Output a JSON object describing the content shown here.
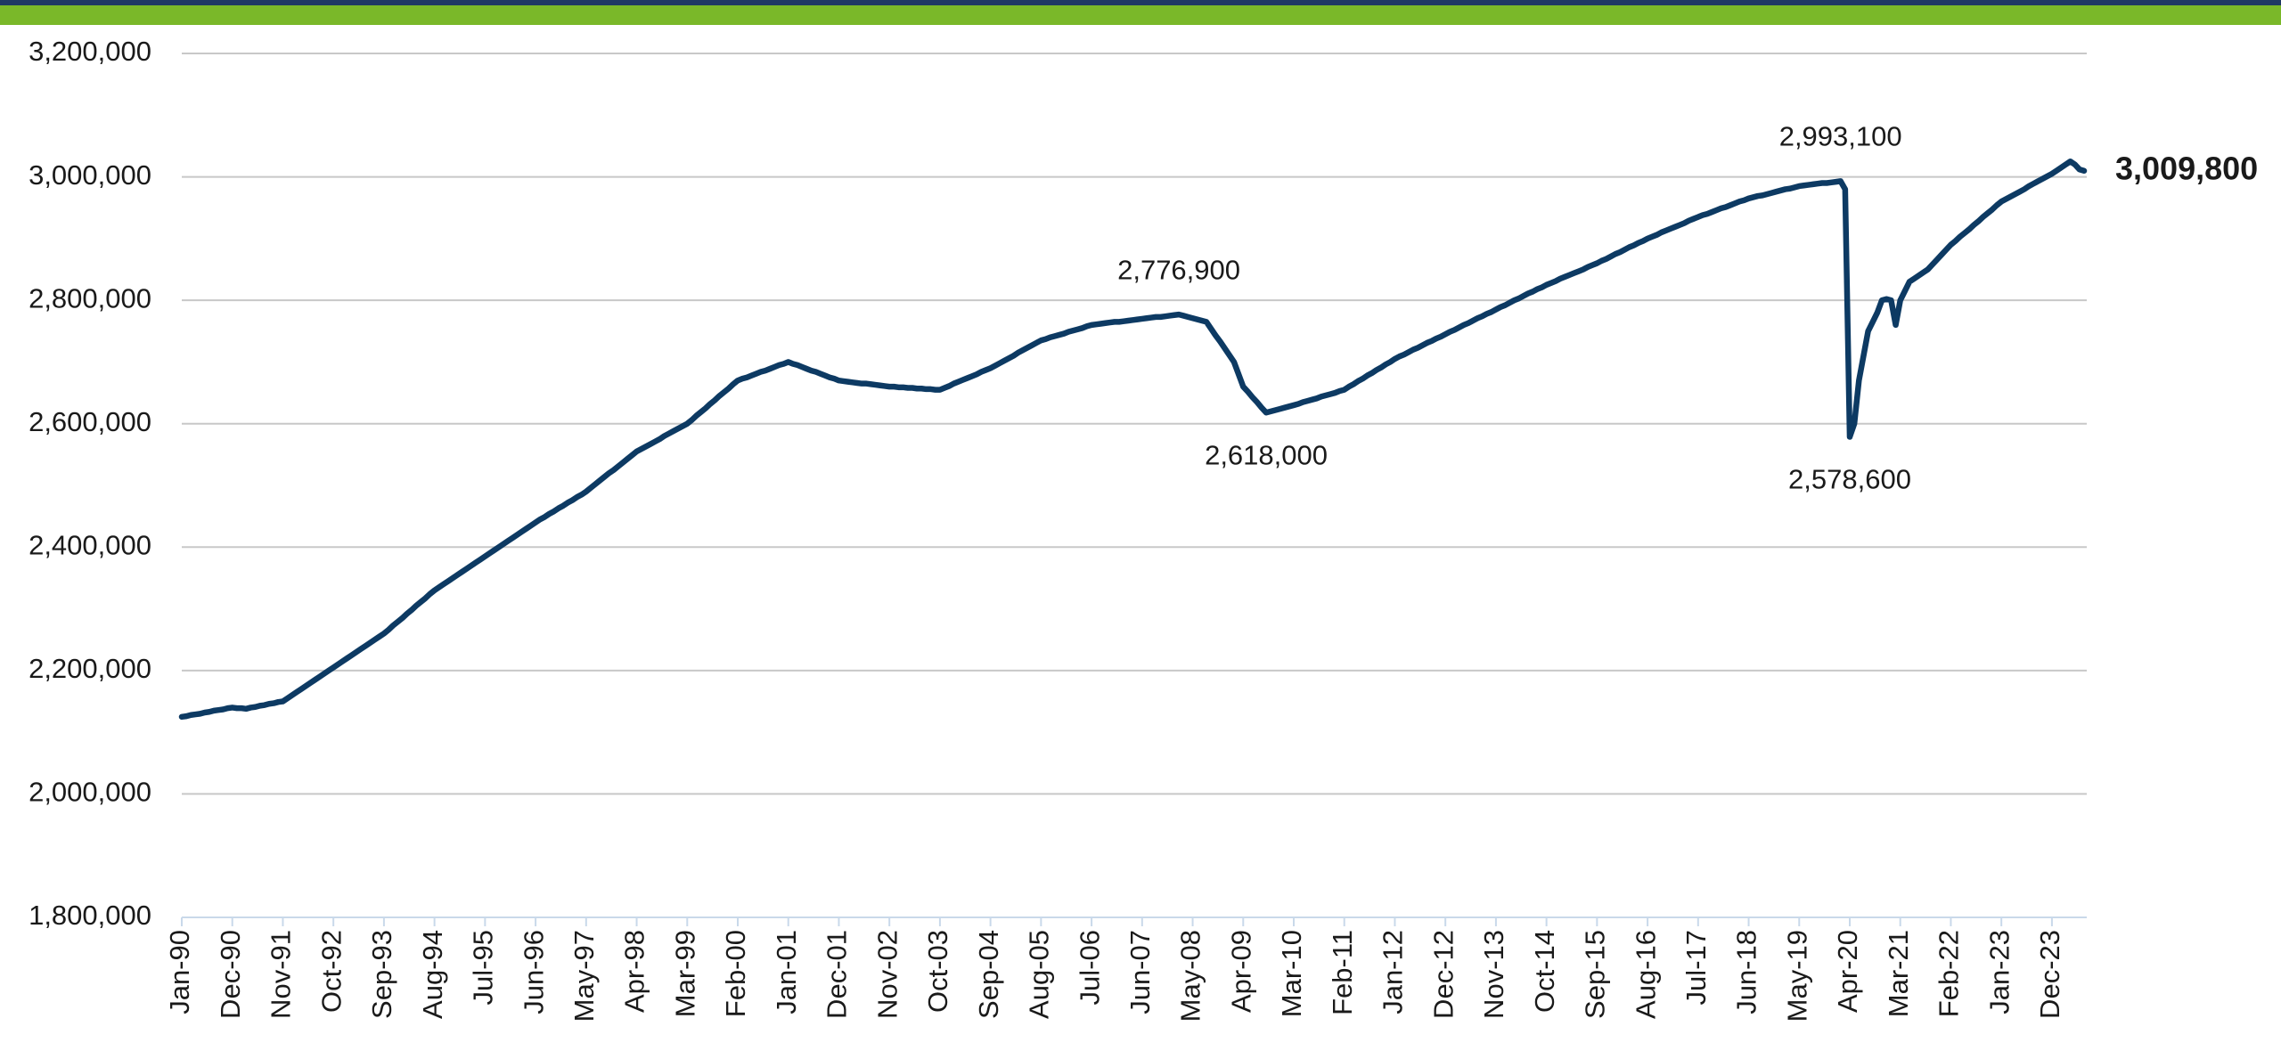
{
  "chart_data": {
    "type": "line",
    "color": "#0d3a63",
    "grid": true,
    "ylim": [
      1800000,
      3200000
    ],
    "yticks": [
      {
        "value": 1800000,
        "label": "1,800,000"
      },
      {
        "value": 2000000,
        "label": "2,000,000"
      },
      {
        "value": 2200000,
        "label": "2,200,000"
      },
      {
        "value": 2400000,
        "label": "2,400,000"
      },
      {
        "value": 2600000,
        "label": "2,600,000"
      },
      {
        "value": 2800000,
        "label": "2,800,000"
      },
      {
        "value": 3000000,
        "label": "3,000,000"
      },
      {
        "value": 3200000,
        "label": "3,200,000"
      }
    ],
    "categories": [
      "Jan-90",
      null,
      null,
      null,
      null,
      null,
      null,
      null,
      null,
      null,
      null,
      "Dec-90",
      null,
      null,
      null,
      null,
      null,
      null,
      null,
      null,
      null,
      null,
      "Nov-91",
      null,
      null,
      null,
      null,
      null,
      null,
      null,
      null,
      null,
      null,
      "Oct-92",
      null,
      null,
      null,
      null,
      null,
      null,
      null,
      null,
      null,
      null,
      "Sep-93",
      null,
      null,
      null,
      null,
      null,
      null,
      null,
      null,
      null,
      null,
      "Aug-94",
      null,
      null,
      null,
      null,
      null,
      null,
      null,
      null,
      null,
      null,
      "Jul-95",
      null,
      null,
      null,
      null,
      null,
      null,
      null,
      null,
      null,
      null,
      "Jun-96",
      null,
      null,
      null,
      null,
      null,
      null,
      null,
      null,
      null,
      null,
      "May-97",
      null,
      null,
      null,
      null,
      null,
      null,
      null,
      null,
      null,
      null,
      "Apr-98",
      null,
      null,
      null,
      null,
      null,
      null,
      null,
      null,
      null,
      null,
      "Mar-99",
      null,
      null,
      null,
      null,
      null,
      null,
      null,
      null,
      null,
      null,
      "Feb-00",
      null,
      null,
      null,
      null,
      null,
      null,
      null,
      null,
      null,
      null,
      "Jan-01",
      null,
      null,
      null,
      null,
      null,
      null,
      null,
      null,
      null,
      null,
      "Dec-01",
      null,
      null,
      null,
      null,
      null,
      null,
      null,
      null,
      null,
      null,
      "Nov-02",
      null,
      null,
      null,
      null,
      null,
      null,
      null,
      null,
      null,
      null,
      "Oct-03",
      null,
      null,
      null,
      null,
      null,
      null,
      null,
      null,
      null,
      null,
      "Sep-04",
      null,
      null,
      null,
      null,
      null,
      null,
      null,
      null,
      null,
      null,
      "Aug-05",
      null,
      null,
      null,
      null,
      null,
      null,
      null,
      null,
      null,
      null,
      "Jul-06",
      null,
      null,
      null,
      null,
      null,
      null,
      null,
      null,
      null,
      null,
      "Jun-07",
      null,
      null,
      null,
      null,
      null,
      null,
      null,
      null,
      null,
      null,
      "May-08",
      null,
      null,
      null,
      null,
      null,
      null,
      null,
      null,
      null,
      null,
      "Apr-09",
      null,
      null,
      null,
      null,
      null,
      null,
      null,
      null,
      null,
      null,
      "Mar-10",
      null,
      null,
      null,
      null,
      null,
      null,
      null,
      null,
      null,
      null,
      "Feb-11",
      null,
      null,
      null,
      null,
      null,
      null,
      null,
      null,
      null,
      null,
      "Jan-12",
      null,
      null,
      null,
      null,
      null,
      null,
      null,
      null,
      null,
      null,
      "Dec-12",
      null,
      null,
      null,
      null,
      null,
      null,
      null,
      null,
      null,
      null,
      "Nov-13",
      null,
      null,
      null,
      null,
      null,
      null,
      null,
      null,
      null,
      null,
      "Oct-14",
      null,
      null,
      null,
      null,
      null,
      null,
      null,
      null,
      null,
      null,
      "Sep-15",
      null,
      null,
      null,
      null,
      null,
      null,
      null,
      null,
      null,
      null,
      "Aug-16",
      null,
      null,
      null,
      null,
      null,
      null,
      null,
      null,
      null,
      null,
      "Jul-17",
      null,
      null,
      null,
      null,
      null,
      null,
      null,
      null,
      null,
      null,
      "Jun-18",
      null,
      null,
      null,
      null,
      null,
      null,
      null,
      null,
      null,
      null,
      "May-19",
      null,
      null,
      null,
      null,
      null,
      null,
      null,
      null,
      null,
      null,
      "Apr-20",
      null,
      null,
      null,
      null,
      null,
      null,
      null,
      null,
      null,
      null,
      "Mar-21",
      null,
      null,
      null,
      null,
      null,
      null,
      null,
      null,
      null,
      null,
      "Feb-22",
      null,
      null,
      null,
      null,
      null,
      null,
      null,
      null,
      null,
      null,
      "Jan-23",
      null,
      null,
      null,
      null,
      null,
      null,
      null,
      null,
      null,
      null,
      "Dec-23",
      null,
      null,
      null,
      null,
      null,
      null,
      null
    ],
    "values": [
      2125000,
      2126000,
      2128000,
      2129000,
      2130000,
      2132000,
      2133000,
      2135000,
      2136000,
      2137000,
      2139000,
      2140000,
      2139000,
      2139000,
      2138000,
      2140000,
      2141000,
      2143000,
      2144000,
      2146000,
      2147000,
      2149000,
      2150000,
      2155000,
      2160000,
      2165000,
      2170000,
      2175000,
      2180000,
      2185000,
      2190000,
      2195000,
      2200000,
      2205000,
      2210000,
      2215000,
      2220000,
      2225000,
      2230000,
      2235000,
      2240000,
      2245000,
      2250000,
      2255000,
      2260000,
      2266000,
      2273000,
      2279000,
      2285000,
      2292000,
      2298000,
      2305000,
      2311000,
      2317000,
      2324000,
      2330000,
      2335000,
      2340000,
      2345000,
      2350000,
      2355000,
      2360000,
      2365000,
      2370000,
      2375000,
      2380000,
      2385000,
      2390000,
      2395000,
      2400000,
      2405000,
      2410000,
      2415000,
      2420000,
      2425000,
      2430000,
      2435000,
      2440000,
      2445000,
      2449000,
      2454000,
      2458000,
      2463000,
      2467000,
      2472000,
      2476000,
      2481000,
      2485000,
      2490000,
      2496000,
      2502000,
      2508000,
      2514000,
      2520000,
      2525000,
      2531000,
      2537000,
      2543000,
      2549000,
      2555000,
      2559000,
      2563000,
      2567000,
      2571000,
      2575000,
      2580000,
      2584000,
      2588000,
      2592000,
      2596000,
      2600000,
      2606000,
      2613000,
      2619000,
      2625000,
      2632000,
      2638000,
      2645000,
      2651000,
      2657000,
      2664000,
      2670000,
      2673000,
      2675000,
      2678000,
      2681000,
      2684000,
      2686000,
      2689000,
      2692000,
      2695000,
      2697000,
      2700000,
      2697000,
      2695000,
      2692000,
      2689000,
      2686000,
      2684000,
      2681000,
      2678000,
      2675000,
      2673000,
      2670000,
      2669000,
      2668000,
      2667000,
      2666000,
      2665000,
      2665000,
      2664000,
      2663000,
      2662000,
      2661000,
      2660000,
      2660000,
      2659000,
      2659000,
      2658000,
      2658000,
      2657000,
      2657000,
      2656000,
      2656000,
      2655000,
      2655000,
      2658000,
      2661000,
      2665000,
      2668000,
      2671000,
      2674000,
      2677000,
      2680000,
      2684000,
      2687000,
      2690000,
      2694000,
      2698000,
      2702000,
      2706000,
      2710000,
      2715000,
      2719000,
      2723000,
      2727000,
      2731000,
      2735000,
      2737000,
      2740000,
      2742000,
      2744000,
      2746000,
      2749000,
      2751000,
      2753000,
      2755000,
      2758000,
      2760000,
      2761000,
      2762000,
      2763000,
      2764000,
      2765000,
      2765000,
      2766000,
      2767000,
      2768000,
      2769000,
      2770000,
      2771000,
      2772000,
      2773000,
      2773000,
      2774000,
      2775000,
      2776000,
      2776900,
      2775000,
      2773000,
      2771000,
      2769000,
      2767000,
      2765000,
      2754000,
      2743000,
      2733000,
      2722000,
      2711000,
      2700000,
      2680000,
      2660000,
      2652000,
      2643000,
      2635000,
      2626000,
      2618000,
      2620000,
      2622000,
      2624000,
      2626000,
      2628000,
      2630000,
      2632000,
      2635000,
      2637000,
      2639000,
      2641000,
      2644000,
      2646000,
      2648000,
      2650000,
      2653000,
      2655000,
      2660000,
      2664000,
      2669000,
      2673000,
      2678000,
      2682000,
      2687000,
      2691000,
      2696000,
      2700000,
      2705000,
      2709000,
      2712000,
      2716000,
      2720000,
      2723000,
      2727000,
      2731000,
      2734000,
      2738000,
      2741000,
      2745000,
      2749000,
      2752000,
      2756000,
      2760000,
      2763000,
      2767000,
      2771000,
      2774000,
      2778000,
      2781000,
      2785000,
      2789000,
      2792000,
      2796000,
      2800000,
      2803000,
      2807000,
      2811000,
      2814000,
      2818000,
      2821000,
      2825000,
      2828000,
      2831000,
      2835000,
      2838000,
      2841000,
      2844000,
      2847000,
      2850000,
      2854000,
      2857000,
      2860000,
      2864000,
      2867000,
      2871000,
      2875000,
      2878000,
      2882000,
      2886000,
      2889000,
      2893000,
      2896000,
      2900000,
      2903000,
      2906000,
      2910000,
      2913000,
      2916000,
      2919000,
      2922000,
      2925000,
      2929000,
      2932000,
      2935000,
      2938000,
      2940000,
      2943000,
      2946000,
      2949000,
      2951000,
      2954000,
      2957000,
      2960000,
      2962000,
      2965000,
      2967000,
      2969000,
      2970000,
      2972000,
      2974000,
      2976000,
      2978000,
      2980000,
      2981000,
      2983000,
      2985000,
      2986000,
      2987000,
      2988000,
      2989000,
      2990000,
      2990000,
      2991000,
      2992000,
      2993100,
      2980000,
      2578600,
      2600000,
      2670000,
      2710000,
      2750000,
      2765000,
      2780000,
      2800000,
      2802000,
      2800000,
      2760000,
      2800000,
      2815000,
      2830000,
      2835000,
      2840000,
      2845000,
      2850000,
      2858000,
      2866000,
      2874000,
      2882000,
      2890000,
      2896000,
      2903000,
      2909000,
      2915000,
      2922000,
      2928000,
      2935000,
      2941000,
      2947000,
      2954000,
      2960000,
      2964000,
      2968000,
      2972000,
      2976000,
      2980000,
      2985000,
      2989000,
      2993000,
      2997000,
      3001000,
      3005000,
      3010000,
      3015000,
      3020000,
      3025000,
      3020000,
      3012000,
      3009800
    ],
    "annotations": [
      {
        "value": 2776900,
        "label": "2,776,900"
      },
      {
        "value": 2618000,
        "label": "2,618,000"
      },
      {
        "value": 2993100,
        "label": "2,993,100"
      },
      {
        "value": 2578600,
        "label": "2,578,600"
      },
      {
        "value": 3009800,
        "label": "3,009,800"
      }
    ]
  }
}
